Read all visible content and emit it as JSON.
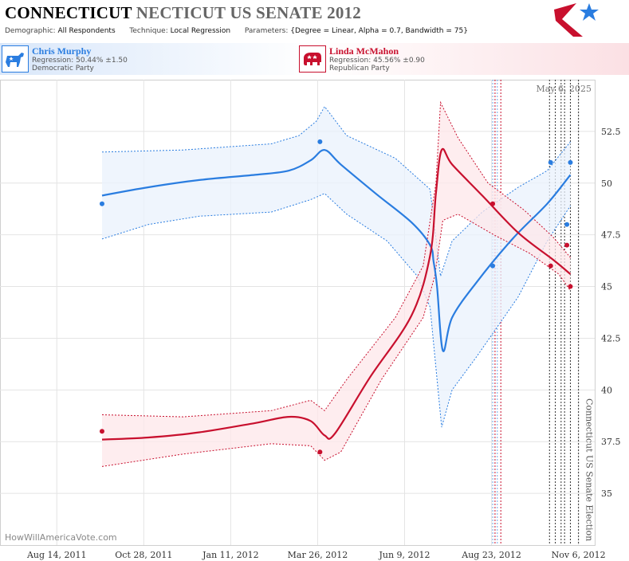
{
  "header": {
    "title_state": "CONNECTICUT",
    "title_race": "NECTICUT US SENATE 2012",
    "demographic_label": "Demographic:",
    "demographic_value": "All Respondents",
    "technique_label": "Technique:",
    "technique_value": "Local Regression",
    "parameters_label": "Parameters:",
    "parameters_value": "{Degree = Linear, Alpha = 0.7, Bandwidth = 75}",
    "logo_icon": "hwav-star-logo-icon"
  },
  "candidates": [
    {
      "name": "Chris Murphy",
      "regression": "Regression: 50.44% ±1.50",
      "party": "Democratic Party",
      "icon": "donkey-icon",
      "color": "#2a7de0"
    },
    {
      "name": "Linda McMahon",
      "regression": "Regression: 45.56% ±0.90",
      "party": "Republican Party",
      "icon": "elephant-icon",
      "color": "#c8102e"
    }
  ],
  "watermark": "HowWillAmericaVote.com",
  "chart_data": {
    "type": "line",
    "date_label": "May 6, 2025",
    "event_label": "Connecticut US Senate Election",
    "x_ticks": [
      "Aug 14, 2011",
      "Oct 28, 2011",
      "Jan 11, 2012",
      "Mar 26, 2012",
      "Jun 9, 2012",
      "Aug 23, 2012",
      "Nov 6, 2012"
    ],
    "y_ticks": [
      "35",
      "37.5",
      "40",
      "42.5",
      "45",
      "47.5",
      "50",
      "52.5"
    ],
    "ylim": [
      32.5,
      55
    ],
    "xlim": [
      "2011-06-26",
      "2012-11-20"
    ],
    "grid": true,
    "election_date": "2012-11-06",
    "poll_dates_dem": [
      "2012-08-24",
      "2012-08-28"
    ],
    "poll_dates_rep": [
      "2012-08-26",
      "2012-08-31"
    ],
    "poll_dates_neutral": [
      "2012-10-12",
      "2012-10-17",
      "2012-10-22",
      "2012-10-25",
      "2012-10-30"
    ],
    "series": [
      {
        "name": "Chris Murphy",
        "color": "#2a7de0",
        "points": [
          [
            "2011-09-22",
            49
          ],
          [
            "2012-03-28",
            52
          ],
          [
            "2012-08-24",
            46
          ],
          [
            "2012-10-13",
            51
          ],
          [
            "2012-10-27",
            48
          ],
          [
            "2012-10-30",
            51
          ]
        ],
        "trend": [
          [
            "2011-09-22",
            49.4
          ],
          [
            "2011-11-01",
            49.8
          ],
          [
            "2011-12-15",
            50.15
          ],
          [
            "2012-02-01",
            50.4
          ],
          [
            "2012-03-01",
            50.6
          ],
          [
            "2012-03-20",
            51.1
          ],
          [
            "2012-04-01",
            51.6
          ],
          [
            "2012-04-15",
            50.9
          ],
          [
            "2012-05-15",
            49.5
          ],
          [
            "2012-06-15",
            48.1
          ],
          [
            "2012-07-01",
            47.0
          ],
          [
            "2012-07-04",
            46.2
          ],
          [
            "2012-07-07",
            45.0
          ],
          [
            "2012-07-12",
            41.9
          ],
          [
            "2012-07-20",
            43.5
          ],
          [
            "2012-08-10",
            45.2
          ],
          [
            "2012-09-10",
            47.3
          ],
          [
            "2012-10-10",
            49.0
          ],
          [
            "2012-10-30",
            50.4
          ]
        ],
        "upper": [
          [
            "2011-09-22",
            51.5
          ],
          [
            "2011-12-01",
            51.6
          ],
          [
            "2012-02-15",
            51.9
          ],
          [
            "2012-03-10",
            52.3
          ],
          [
            "2012-03-25",
            53.0
          ],
          [
            "2012-04-01",
            53.7
          ],
          [
            "2012-04-20",
            52.3
          ],
          [
            "2012-06-01",
            51.2
          ],
          [
            "2012-07-01",
            49.7
          ],
          [
            "2012-07-10",
            45.5
          ],
          [
            "2012-07-20",
            47.2
          ],
          [
            "2012-08-15",
            48.6
          ],
          [
            "2012-09-15",
            49.8
          ],
          [
            "2012-10-10",
            50.6
          ],
          [
            "2012-10-30",
            52.0
          ]
        ],
        "lower": [
          [
            "2011-09-22",
            47.3
          ],
          [
            "2011-11-01",
            48.0
          ],
          [
            "2011-12-15",
            48.4
          ],
          [
            "2012-02-15",
            48.6
          ],
          [
            "2012-03-20",
            49.2
          ],
          [
            "2012-04-01",
            49.5
          ],
          [
            "2012-04-20",
            48.5
          ],
          [
            "2012-05-25",
            47.2
          ],
          [
            "2012-06-20",
            45.5
          ],
          [
            "2012-07-01",
            44.0
          ],
          [
            "2012-07-11",
            38.2
          ],
          [
            "2012-07-20",
            40.0
          ],
          [
            "2012-08-10",
            41.6
          ],
          [
            "2012-09-15",
            44.5
          ],
          [
            "2012-10-10",
            47.2
          ],
          [
            "2012-10-30",
            48.9
          ]
        ]
      },
      {
        "name": "Linda McMahon",
        "color": "#c8102e",
        "points": [
          [
            "2011-09-22",
            38
          ],
          [
            "2012-03-28",
            37
          ],
          [
            "2012-08-24",
            49
          ],
          [
            "2012-10-13",
            46
          ],
          [
            "2012-10-27",
            47
          ],
          [
            "2012-10-30",
            45
          ]
        ],
        "trend": [
          [
            "2011-09-22",
            37.6
          ],
          [
            "2011-11-01",
            37.7
          ],
          [
            "2011-12-15",
            37.95
          ],
          [
            "2012-02-01",
            38.4
          ],
          [
            "2012-03-01",
            38.7
          ],
          [
            "2012-03-20",
            38.5
          ],
          [
            "2012-04-01",
            37.8
          ],
          [
            "2012-04-10",
            37.9
          ],
          [
            "2012-05-10",
            40.6
          ],
          [
            "2012-06-15",
            43.6
          ],
          [
            "2012-07-01",
            46.5
          ],
          [
            "2012-07-06",
            49.5
          ],
          [
            "2012-07-11",
            51.6
          ],
          [
            "2012-07-20",
            50.9
          ],
          [
            "2012-08-15",
            49.4
          ],
          [
            "2012-09-15",
            47.6
          ],
          [
            "2012-10-15",
            46.3
          ],
          [
            "2012-10-30",
            45.6
          ]
        ],
        "upper": [
          [
            "2011-09-22",
            38.8
          ],
          [
            "2011-12-01",
            38.7
          ],
          [
            "2012-02-15",
            39.0
          ],
          [
            "2012-03-20",
            39.5
          ],
          [
            "2012-04-01",
            39.0
          ],
          [
            "2012-04-20",
            40.5
          ],
          [
            "2012-06-01",
            43.5
          ],
          [
            "2012-06-25",
            46.0
          ],
          [
            "2012-07-06",
            50.0
          ],
          [
            "2012-07-10",
            53.9
          ],
          [
            "2012-07-25",
            52.2
          ],
          [
            "2012-08-20",
            50.0
          ],
          [
            "2012-09-20",
            48.7
          ],
          [
            "2012-10-15",
            47.4
          ],
          [
            "2012-10-30",
            46.4
          ]
        ],
        "lower": [
          [
            "2011-09-22",
            36.3
          ],
          [
            "2011-12-01",
            36.9
          ],
          [
            "2012-02-15",
            37.4
          ],
          [
            "2012-03-20",
            37.3
          ],
          [
            "2012-04-01",
            36.6
          ],
          [
            "2012-04-15",
            37.0
          ],
          [
            "2012-05-20",
            40.5
          ],
          [
            "2012-06-25",
            43.5
          ],
          [
            "2012-07-05",
            45.5
          ],
          [
            "2012-07-12",
            48.2
          ],
          [
            "2012-07-25",
            48.5
          ],
          [
            "2012-08-25",
            47.5
          ],
          [
            "2012-09-25",
            46.6
          ],
          [
            "2012-10-20",
            45.6
          ],
          [
            "2012-10-30",
            44.8
          ]
        ]
      }
    ]
  }
}
